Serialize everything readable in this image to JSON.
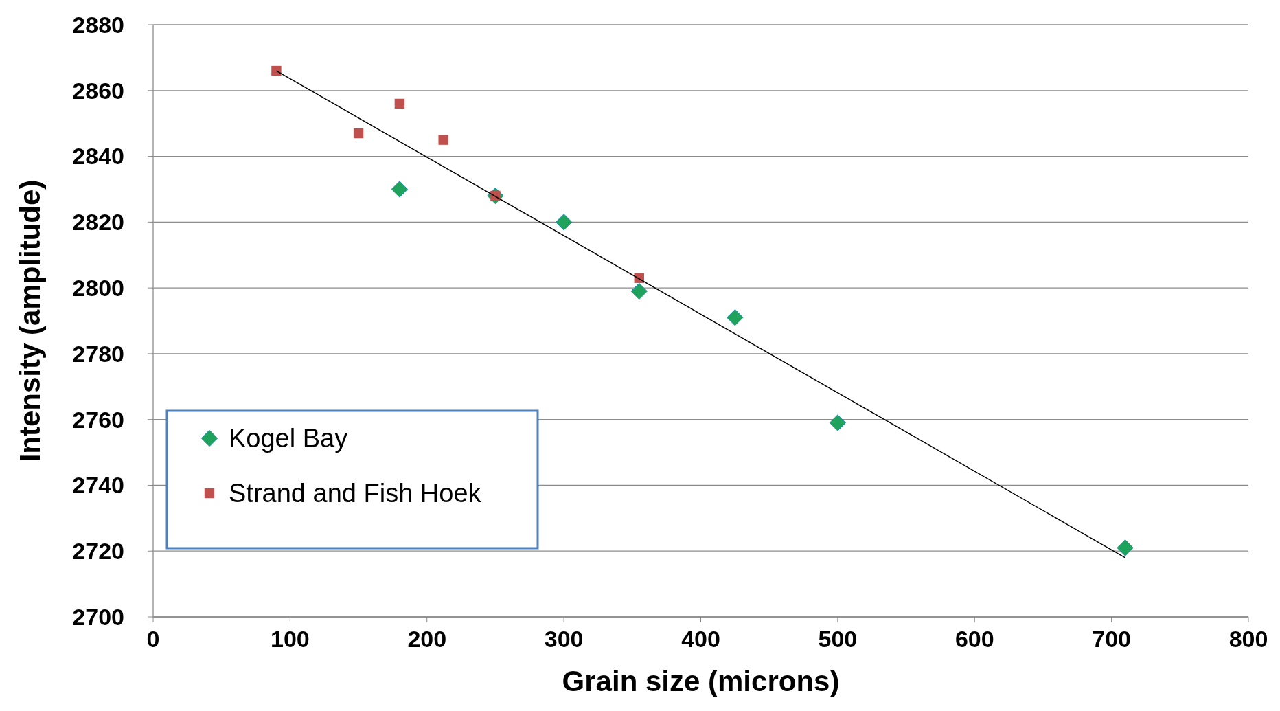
{
  "chart_data": {
    "type": "scatter",
    "xlabel": "Grain size (microns)",
    "ylabel": "Intensity (amplitude)",
    "xlim": [
      0,
      800
    ],
    "xticks": [
      0,
      100,
      200,
      300,
      400,
      500,
      600,
      700,
      800
    ],
    "ylim": [
      2700,
      2880
    ],
    "yticks": [
      2700,
      2720,
      2740,
      2760,
      2780,
      2800,
      2820,
      2840,
      2860,
      2880
    ],
    "grid": "y",
    "legend": "bottom left",
    "series": [
      {
        "name": "Kogel Bay",
        "color": "#1fa35c",
        "marker": "diamond",
        "x": [
          180,
          250,
          300,
          355,
          425,
          500,
          710
        ],
        "values": [
          2830,
          2828,
          2820,
          2799,
          2791,
          2759,
          2721
        ]
      },
      {
        "name": "Strand and Fish Hoek",
        "color": "#c0504d",
        "marker": "square",
        "x": [
          90,
          150,
          180,
          212,
          250,
          355
        ],
        "values": [
          2866,
          2847,
          2856,
          2845,
          2828,
          2803
        ]
      },
      {
        "type": "line",
        "color": "#000000",
        "marker": "none",
        "x": [
          90,
          710
        ],
        "values": [
          2866,
          2718
        ]
      }
    ]
  }
}
